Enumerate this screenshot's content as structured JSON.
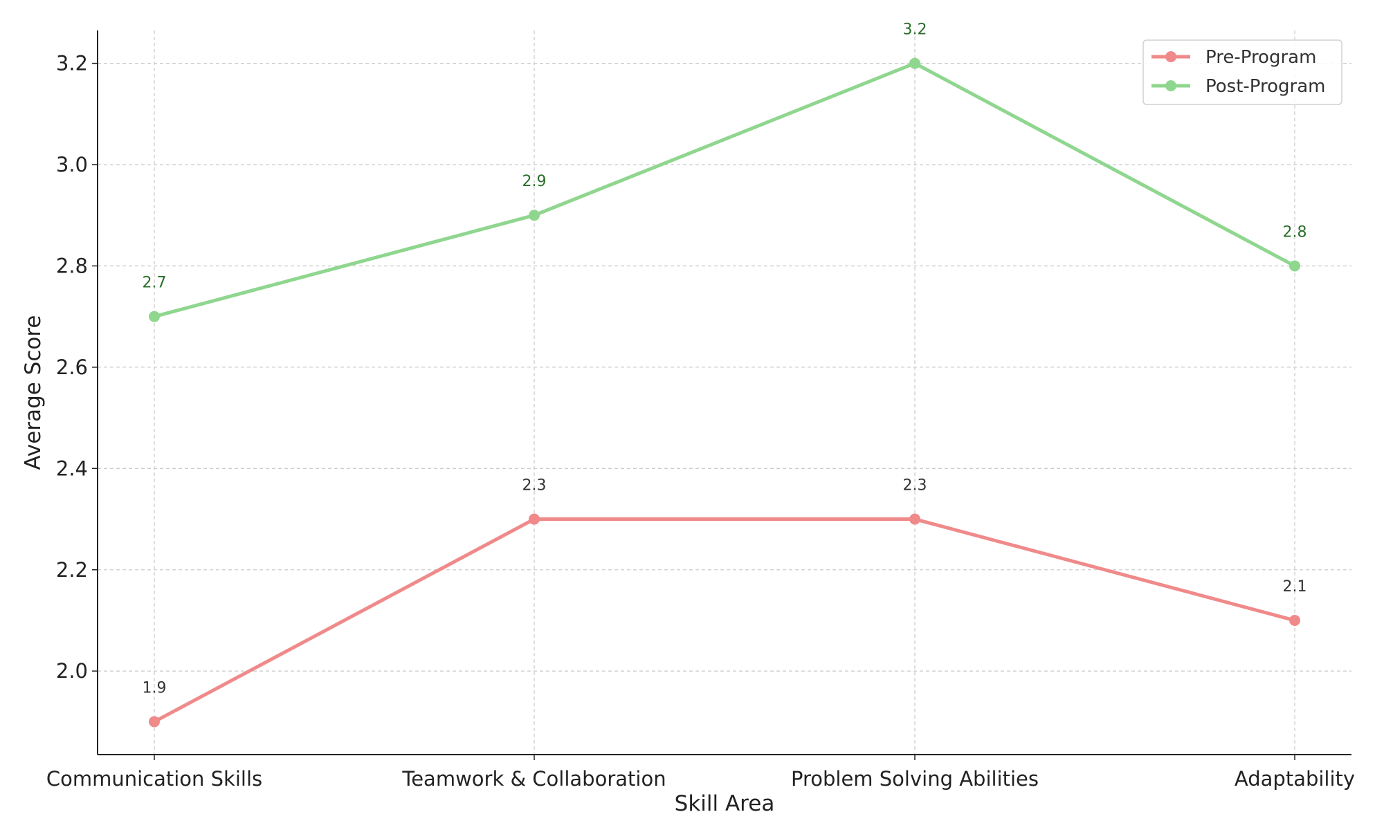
{
  "chart_data": {
    "type": "line",
    "categories": [
      "Communication Skills",
      "Teamwork & Collaboration",
      "Problem Solving Abilities",
      "Adaptability"
    ],
    "series": [
      {
        "name": "Pre-Program",
        "values": [
          1.9,
          2.3,
          2.3,
          2.1
        ],
        "color": "#f08a8a",
        "label_color": "#333333"
      },
      {
        "name": "Post-Program",
        "values": [
          2.7,
          2.9,
          3.2,
          2.8
        ],
        "color": "#8fd68f",
        "label_color": "#2a6e2a"
      }
    ],
    "title": "",
    "xlabel": "Skill Area",
    "ylabel": "Average Score",
    "ylim": [
      1.835,
      3.265
    ],
    "yticks": [
      2.0,
      2.2,
      2.4,
      2.6,
      2.8,
      3.0,
      3.2
    ],
    "ytick_labels": [
      "2.0",
      "2.2",
      "2.4",
      "2.6",
      "2.8",
      "3.0",
      "3.2"
    ],
    "grid": true,
    "legend_position": "top-right",
    "data_labels": true
  }
}
